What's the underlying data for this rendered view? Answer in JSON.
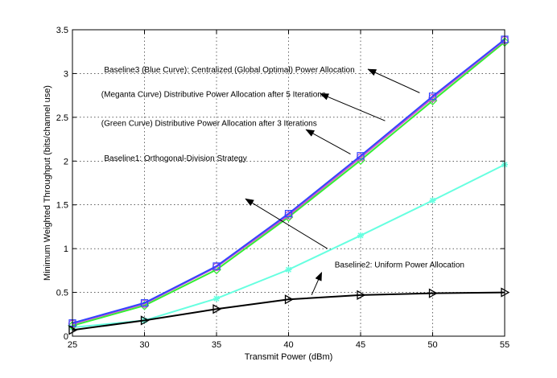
{
  "chart_data": {
    "type": "line",
    "title": "",
    "xlabel": "Transmit Power (dBm)",
    "ylabel": "Minimum Weighted Throughput (bits/channel use)",
    "xlim": [
      25,
      55
    ],
    "ylim": [
      0,
      3.5
    ],
    "xticks": [
      25,
      30,
      35,
      40,
      45,
      50,
      55
    ],
    "yticks": [
      0,
      0.5,
      1,
      1.5,
      2,
      2.5,
      3,
      3.5
    ],
    "grid": true,
    "x": [
      25,
      30,
      35,
      40,
      45,
      50,
      55
    ],
    "series": [
      {
        "key": "orthogonal",
        "color": "#66ffe0",
        "marker": "asterisk",
        "values": [
          0.1,
          0.18,
          0.43,
          0.76,
          1.15,
          1.55,
          1.96
        ]
      },
      {
        "key": "green",
        "color": "#33ee33",
        "marker": "diamond",
        "values": [
          0.12,
          0.35,
          0.76,
          1.36,
          2.01,
          2.69,
          3.36
        ]
      },
      {
        "key": "magenta",
        "color": "#cc55cc",
        "marker": "circle",
        "values": [
          0.14,
          0.37,
          0.79,
          1.38,
          2.04,
          2.72,
          3.38
        ]
      },
      {
        "key": "blue",
        "color": "#3344ff",
        "marker": "square",
        "values": [
          0.15,
          0.38,
          0.8,
          1.4,
          2.06,
          2.74,
          3.39
        ]
      },
      {
        "key": "uniform",
        "color": "#000000",
        "marker": "triangle-right",
        "values": [
          0.07,
          0.18,
          0.31,
          0.42,
          0.47,
          0.49,
          0.5
        ]
      }
    ],
    "annotations": [
      {
        "text": "Baseline3 (Blue Curve): Centralized (Global Optimal) Power Allocation",
        "x": 27.2,
        "y": 3.05,
        "ax": 49.1,
        "ay": 2.78,
        "hx": 45.5,
        "hy": 3.05
      },
      {
        "text": "(Meganta Curve) Distributive Power Allocation after 5 Iterations",
        "x": 27.0,
        "y": 2.77,
        "ax": 46.7,
        "ay": 2.46,
        "hx": 42.2,
        "hy": 2.77
      },
      {
        "text": "(Green Curve) Distributive Power Allocation after 3 Iterations",
        "x": 27.0,
        "y": 2.44,
        "ax": 44.3,
        "ay": 2.08,
        "hx": 41.2,
        "hy": 2.36
      },
      {
        "text": "Baseline1: Orthogonal-Division Strategy",
        "x": 27.2,
        "y": 2.04,
        "ax": 42.7,
        "ay": 1.0,
        "hx": 37.0,
        "hy": 1.57
      },
      {
        "text": "Baseline2: Uniform Power Allocation",
        "x": 43.2,
        "y": 0.82,
        "ax": 41.6,
        "ay": 0.47,
        "hx": 42.3,
        "hy": 0.73
      }
    ]
  }
}
